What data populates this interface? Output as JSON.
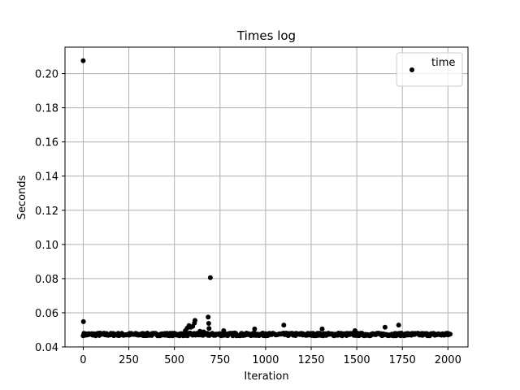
{
  "chart_data": {
    "type": "scatter",
    "title": "Times log",
    "xlabel": "Iteration",
    "ylabel": "Seconds",
    "xlim": [
      -100,
      2110
    ],
    "ylim": [
      0.04,
      0.2155
    ],
    "xticks": [
      0,
      250,
      500,
      750,
      1000,
      1250,
      1500,
      1750,
      2000
    ],
    "xtick_labels": [
      "0",
      "250",
      "500",
      "750",
      "1000",
      "1250",
      "1500",
      "1750",
      "2000"
    ],
    "yticks": [
      0.04,
      0.06,
      0.08,
      0.1,
      0.12,
      0.14,
      0.16,
      0.18,
      0.2
    ],
    "ytick_labels": [
      "0.04",
      "0.06",
      "0.08",
      "0.10",
      "0.12",
      "0.14",
      "0.16",
      "0.18",
      "0.20"
    ],
    "grid": true,
    "legend_position": "top-right",
    "marker_color": "#000000",
    "series": [
      {
        "name": "time",
        "points": [
          [
            0,
            0.2075
          ],
          [
            1,
            0.0548
          ],
          [
            5,
            0.0478
          ],
          [
            20,
            0.0474
          ],
          [
            50,
            0.0476
          ],
          [
            90,
            0.0481
          ],
          [
            150,
            0.0475
          ],
          [
            250,
            0.0474
          ],
          [
            350,
            0.0476
          ],
          [
            450,
            0.0475
          ],
          [
            540,
            0.0478
          ],
          [
            560,
            0.0495
          ],
          [
            570,
            0.051
          ],
          [
            580,
            0.0525
          ],
          [
            590,
            0.0515
          ],
          [
            600,
            0.052
          ],
          [
            610,
            0.054
          ],
          [
            613,
            0.0555
          ],
          [
            640,
            0.0492
          ],
          [
            660,
            0.0488
          ],
          [
            685,
            0.0575
          ],
          [
            688,
            0.0538
          ],
          [
            690,
            0.0508
          ],
          [
            697,
            0.0805
          ],
          [
            770,
            0.0495
          ],
          [
            830,
            0.0482
          ],
          [
            940,
            0.0505
          ],
          [
            1000,
            0.0478
          ],
          [
            1100,
            0.0528
          ],
          [
            1200,
            0.0478
          ],
          [
            1310,
            0.0505
          ],
          [
            1400,
            0.0481
          ],
          [
            1490,
            0.0495
          ],
          [
            1560,
            0.047
          ],
          [
            1655,
            0.0515
          ],
          [
            1730,
            0.0528
          ],
          [
            1800,
            0.0478
          ],
          [
            1900,
            0.0474
          ],
          [
            2000,
            0.048
          ]
        ],
        "baseline": {
          "x_start": 0,
          "x_end": 2014,
          "step": 4,
          "center": 0.0473,
          "jitter": 0.0008
        }
      }
    ]
  }
}
